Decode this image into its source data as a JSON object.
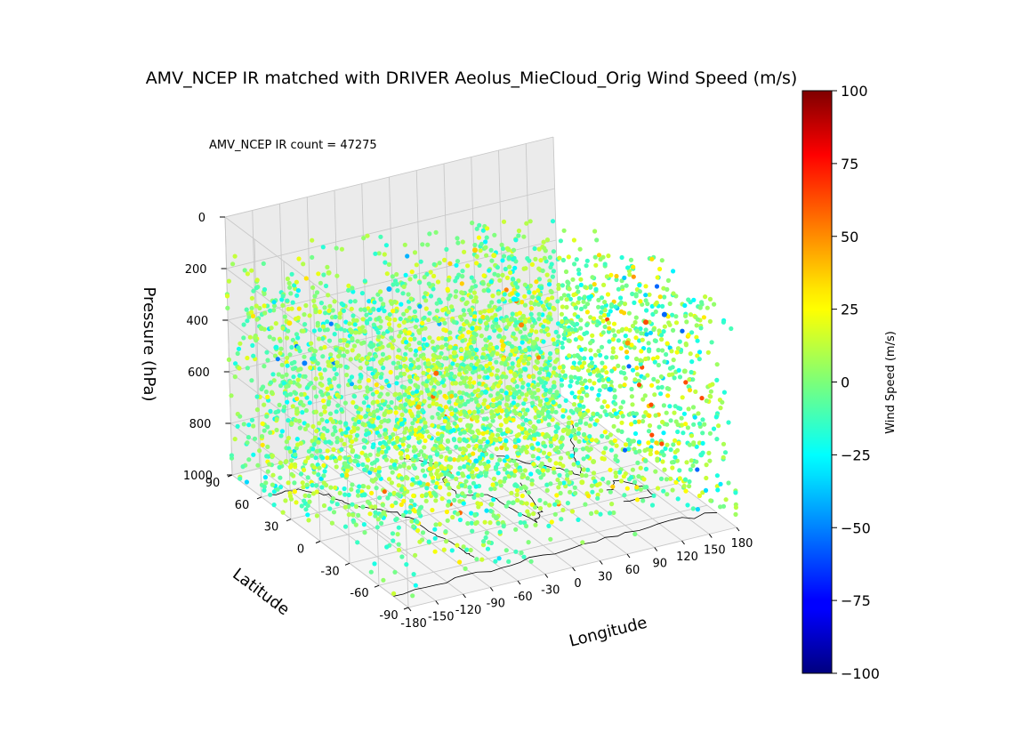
{
  "chart_data": {
    "type": "scatter",
    "projection": "3d",
    "title": "AMV_NCEP IR matched with DRIVER Aeolus_MieCloud_Orig Wind Speed (m/s)",
    "annotation": "AMV_NCEP IR count = 47275",
    "xlabel": "Longitude",
    "ylabel": "Latitude",
    "zlabel": "Pressure (hPa)",
    "xlim": [
      -180,
      180
    ],
    "ylim": [
      -90,
      90
    ],
    "zlim": [
      0,
      1000
    ],
    "z_inverted": true,
    "x_ticks": [
      "-180",
      "-150",
      "-120",
      "-90",
      "-60",
      "-30",
      "0",
      "30",
      "60",
      "90",
      "120",
      "150",
      "180"
    ],
    "y_ticks": [
      "-90",
      "-60",
      "-30",
      "0",
      "30",
      "60",
      "90"
    ],
    "z_ticks": [
      "0",
      "200",
      "400",
      "600",
      "800",
      "1000"
    ],
    "grid": true,
    "colormap": "jet",
    "colorbar": {
      "label": "Wind Speed (m/s)",
      "range": [
        -100,
        100
      ],
      "ticks": [
        "100",
        "75",
        "50",
        "25",
        "0",
        "−25",
        "−50",
        "−75",
        "−100"
      ]
    },
    "point_count": 47275,
    "sample_points": [
      {
        "lon": -175,
        "lat": 60,
        "p": 350,
        "v": 5
      },
      {
        "lon": -170,
        "lat": 50,
        "p": 400,
        "v": -20
      },
      {
        "lon": -160,
        "lat": 45,
        "p": 300,
        "v": 30
      },
      {
        "lon": -150,
        "lat": 40,
        "p": 450,
        "v": -50
      },
      {
        "lon": -140,
        "lat": 30,
        "p": 600,
        "v": 10
      },
      {
        "lon": -130,
        "lat": 20,
        "p": 800,
        "v": 0
      },
      {
        "lon": -120,
        "lat": 10,
        "p": 900,
        "v": -15
      },
      {
        "lon": -110,
        "lat": 0,
        "p": 950,
        "v": 5
      },
      {
        "lon": -100,
        "lat": -10,
        "p": 700,
        "v": 20
      },
      {
        "lon": -90,
        "lat": -20,
        "p": 500,
        "v": 40
      },
      {
        "lon": -80,
        "lat": -30,
        "p": 350,
        "v": 55
      },
      {
        "lon": -70,
        "lat": -40,
        "p": 250,
        "v": 15
      },
      {
        "lon": -60,
        "lat": -50,
        "p": 650,
        "v": -30
      },
      {
        "lon": -50,
        "lat": -60,
        "p": 850,
        "v": 0
      },
      {
        "lon": -40,
        "lat": 55,
        "p": 300,
        "v": -40
      },
      {
        "lon": -30,
        "lat": 45,
        "p": 450,
        "v": 25
      },
      {
        "lon": -20,
        "lat": 35,
        "p": 550,
        "v": 10
      },
      {
        "lon": -10,
        "lat": 25,
        "p": 900,
        "v": -5
      },
      {
        "lon": 0,
        "lat": 15,
        "p": 750,
        "v": 5
      },
      {
        "lon": 10,
        "lat": 5,
        "p": 600,
        "v": -20
      },
      {
        "lon": 20,
        "lat": -5,
        "p": 400,
        "v": 30
      },
      {
        "lon": 30,
        "lat": -15,
        "p": 300,
        "v": 50
      },
      {
        "lon": 40,
        "lat": -25,
        "p": 500,
        "v": -10
      },
      {
        "lon": 50,
        "lat": -35,
        "p": 700,
        "v": 0
      },
      {
        "lon": 60,
        "lat": -45,
        "p": 850,
        "v": 15
      },
      {
        "lon": 70,
        "lat": 50,
        "p": 250,
        "v": 20
      },
      {
        "lon": 80,
        "lat": 40,
        "p": 400,
        "v": -25
      },
      {
        "lon": 90,
        "lat": 30,
        "p": 550,
        "v": 5
      },
      {
        "lon": 100,
        "lat": 20,
        "p": 700,
        "v": -10
      },
      {
        "lon": 110,
        "lat": 10,
        "p": 850,
        "v": 0
      },
      {
        "lon": 120,
        "lat": 0,
        "p": 950,
        "v": 10
      },
      {
        "lon": 130,
        "lat": -10,
        "p": 650,
        "v": -35
      },
      {
        "lon": 140,
        "lat": -20,
        "p": 450,
        "v": 45
      },
      {
        "lon": 150,
        "lat": -30,
        "p": 350,
        "v": 60
      },
      {
        "lon": 160,
        "lat": -40,
        "p": 300,
        "v": -55
      },
      {
        "lon": 170,
        "lat": -50,
        "p": 500,
        "v": 5
      },
      {
        "lon": 175,
        "lat": -60,
        "p": 800,
        "v": -15
      },
      {
        "lon": -150,
        "lat": -60,
        "p": 400,
        "v": -20
      },
      {
        "lon": -100,
        "lat": 60,
        "p": 200,
        "v": 10
      },
      {
        "lon": 60,
        "lat": 60,
        "p": 250,
        "v": 35
      }
    ]
  }
}
